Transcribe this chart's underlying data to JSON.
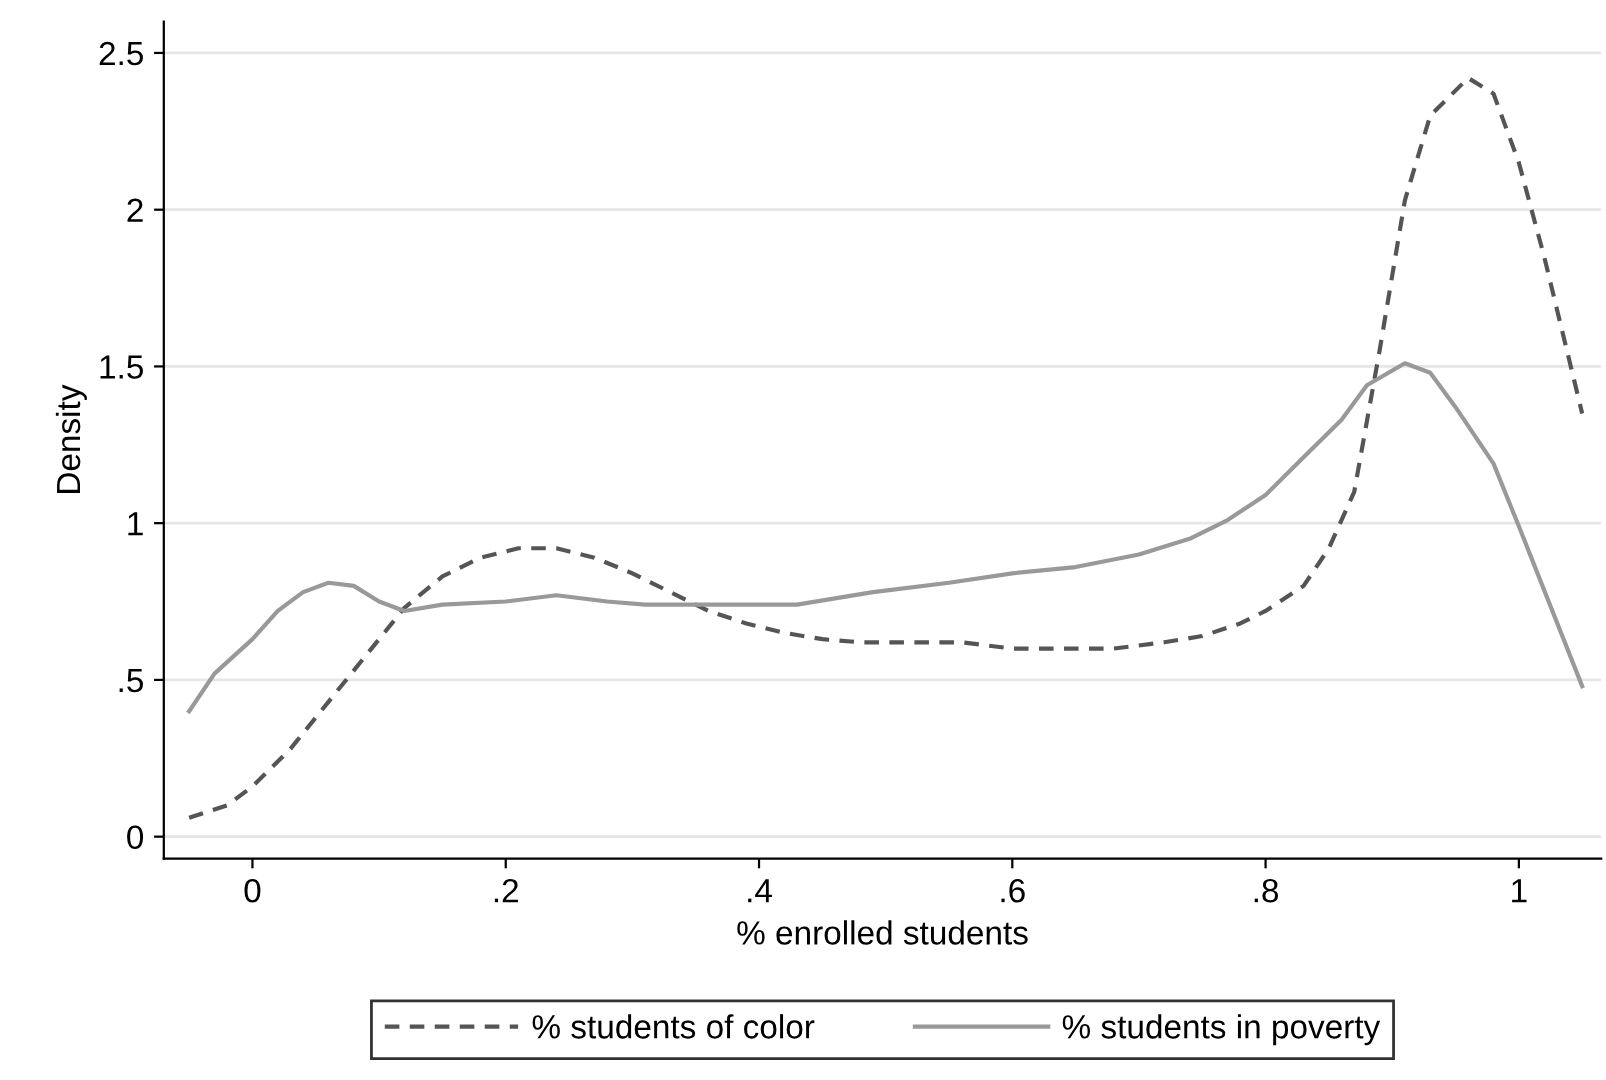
{
  "chart_data": {
    "type": "line",
    "xlabel": "% enrolled students",
    "ylabel": "Density",
    "xlim": [
      -0.07,
      1.065
    ],
    "ylim": [
      -0.07,
      2.6
    ],
    "xticks": [
      0,
      {
        "value": 0.2,
        "label": ".2"
      },
      {
        "value": 0.4,
        "label": ".4"
      },
      {
        "value": 0.6,
        "label": ".6"
      },
      {
        "value": 0.8,
        "label": ".8"
      },
      1
    ],
    "yticks": [
      0,
      {
        "value": 0.5,
        "label": ".5"
      },
      1,
      1.5,
      2,
      2.5
    ],
    "grid": "y",
    "legend": "bottom",
    "marker": "none",
    "series": [
      {
        "name": "% students of color",
        "color": "#555555",
        "line_style": "dashed",
        "x": [
          -0.05,
          -0.02,
          0,
          0.03,
          0.06,
          0.09,
          0.12,
          0.15,
          0.18,
          0.21,
          0.24,
          0.27,
          0.3,
          0.33,
          0.36,
          0.39,
          0.42,
          0.45,
          0.48,
          0.52,
          0.56,
          0.6,
          0.64,
          0.68,
          0.72,
          0.75,
          0.78,
          0.8,
          0.83,
          0.85,
          0.87,
          0.89,
          0.91,
          0.93,
          0.96,
          0.98,
          1.0,
          1.02,
          1.05
        ],
        "values": [
          0.06,
          0.1,
          0.16,
          0.28,
          0.43,
          0.58,
          0.73,
          0.83,
          0.89,
          0.92,
          0.92,
          0.89,
          0.84,
          0.78,
          0.72,
          0.68,
          0.65,
          0.63,
          0.62,
          0.62,
          0.62,
          0.6,
          0.6,
          0.6,
          0.62,
          0.64,
          0.68,
          0.72,
          0.8,
          0.92,
          1.1,
          1.55,
          2.03,
          2.3,
          2.42,
          2.37,
          2.15,
          1.85,
          1.35
        ]
      },
      {
        "name": "% students in poverty",
        "color": "#999999",
        "line_style": "solid",
        "x": [
          -0.05,
          -0.03,
          0,
          0.02,
          0.04,
          0.06,
          0.08,
          0.1,
          0.12,
          0.15,
          0.2,
          0.24,
          0.28,
          0.31,
          0.37,
          0.43,
          0.46,
          0.49,
          0.55,
          0.6,
          0.65,
          0.7,
          0.74,
          0.77,
          0.8,
          0.83,
          0.86,
          0.88,
          0.91,
          0.93,
          0.95,
          0.98,
          1.0,
          1.05
        ],
        "values": [
          0.4,
          0.52,
          0.63,
          0.72,
          0.78,
          0.81,
          0.8,
          0.75,
          0.72,
          0.74,
          0.75,
          0.77,
          0.75,
          0.74,
          0.74,
          0.74,
          0.76,
          0.78,
          0.81,
          0.84,
          0.86,
          0.9,
          0.95,
          1.01,
          1.09,
          1.21,
          1.33,
          1.44,
          1.51,
          1.48,
          1.37,
          1.19,
          0.99,
          0.48
        ]
      }
    ]
  }
}
